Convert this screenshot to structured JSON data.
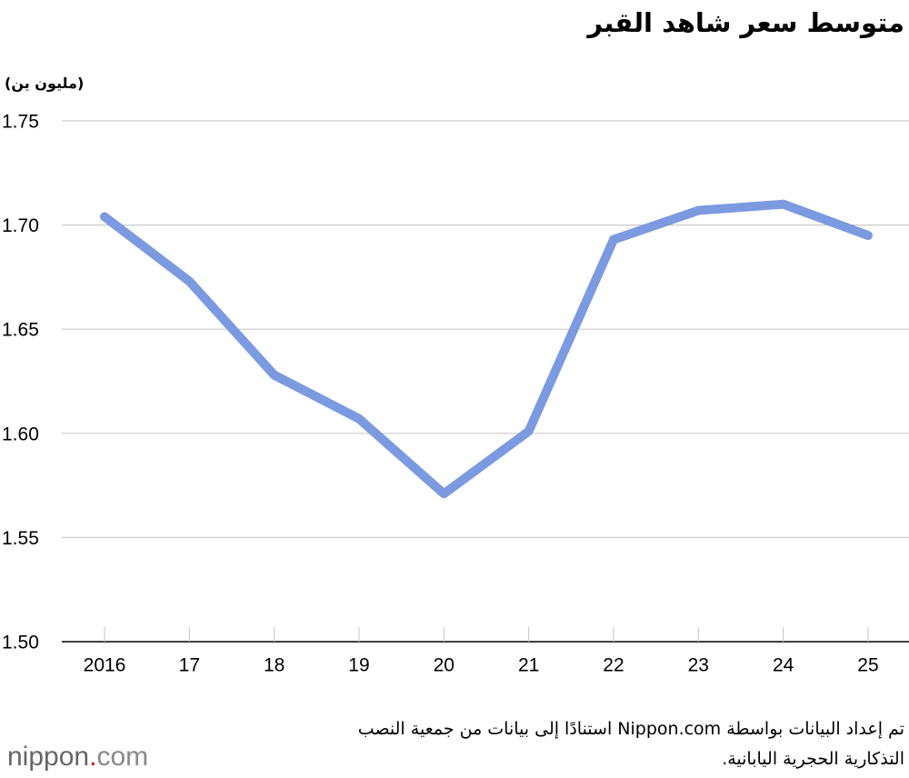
{
  "chart_data": {
    "type": "line",
    "title": "متوسط سعر شاهد القبر",
    "y_axis_label": "(مليون ين)",
    "categories": [
      "2016",
      "17",
      "18",
      "19",
      "20",
      "21",
      "22",
      "23",
      "24",
      "25"
    ],
    "values": [
      1.704,
      1.673,
      1.628,
      1.607,
      1.571,
      1.601,
      1.693,
      1.707,
      1.71,
      1.695
    ],
    "color": "#7b9ae0",
    "ylim": [
      1.5,
      1.75
    ],
    "yticks": [
      {
        "value": 1.5,
        "label": "1.50"
      },
      1.55,
      {
        "value": 1.6,
        "label": "1.60"
      },
      1.65,
      {
        "value": 1.7,
        "label": "1.70"
      },
      1.75
    ],
    "grid": true,
    "source": [
      "تم إعداد البيانات بواسطة Nippon.com استنادًا إلى بيانات من جمعية النصب",
      "التذكارية الحجرية اليابانية."
    ],
    "logo": {
      "name": "nippon",
      "dot": ".",
      "suffix": "com"
    }
  }
}
